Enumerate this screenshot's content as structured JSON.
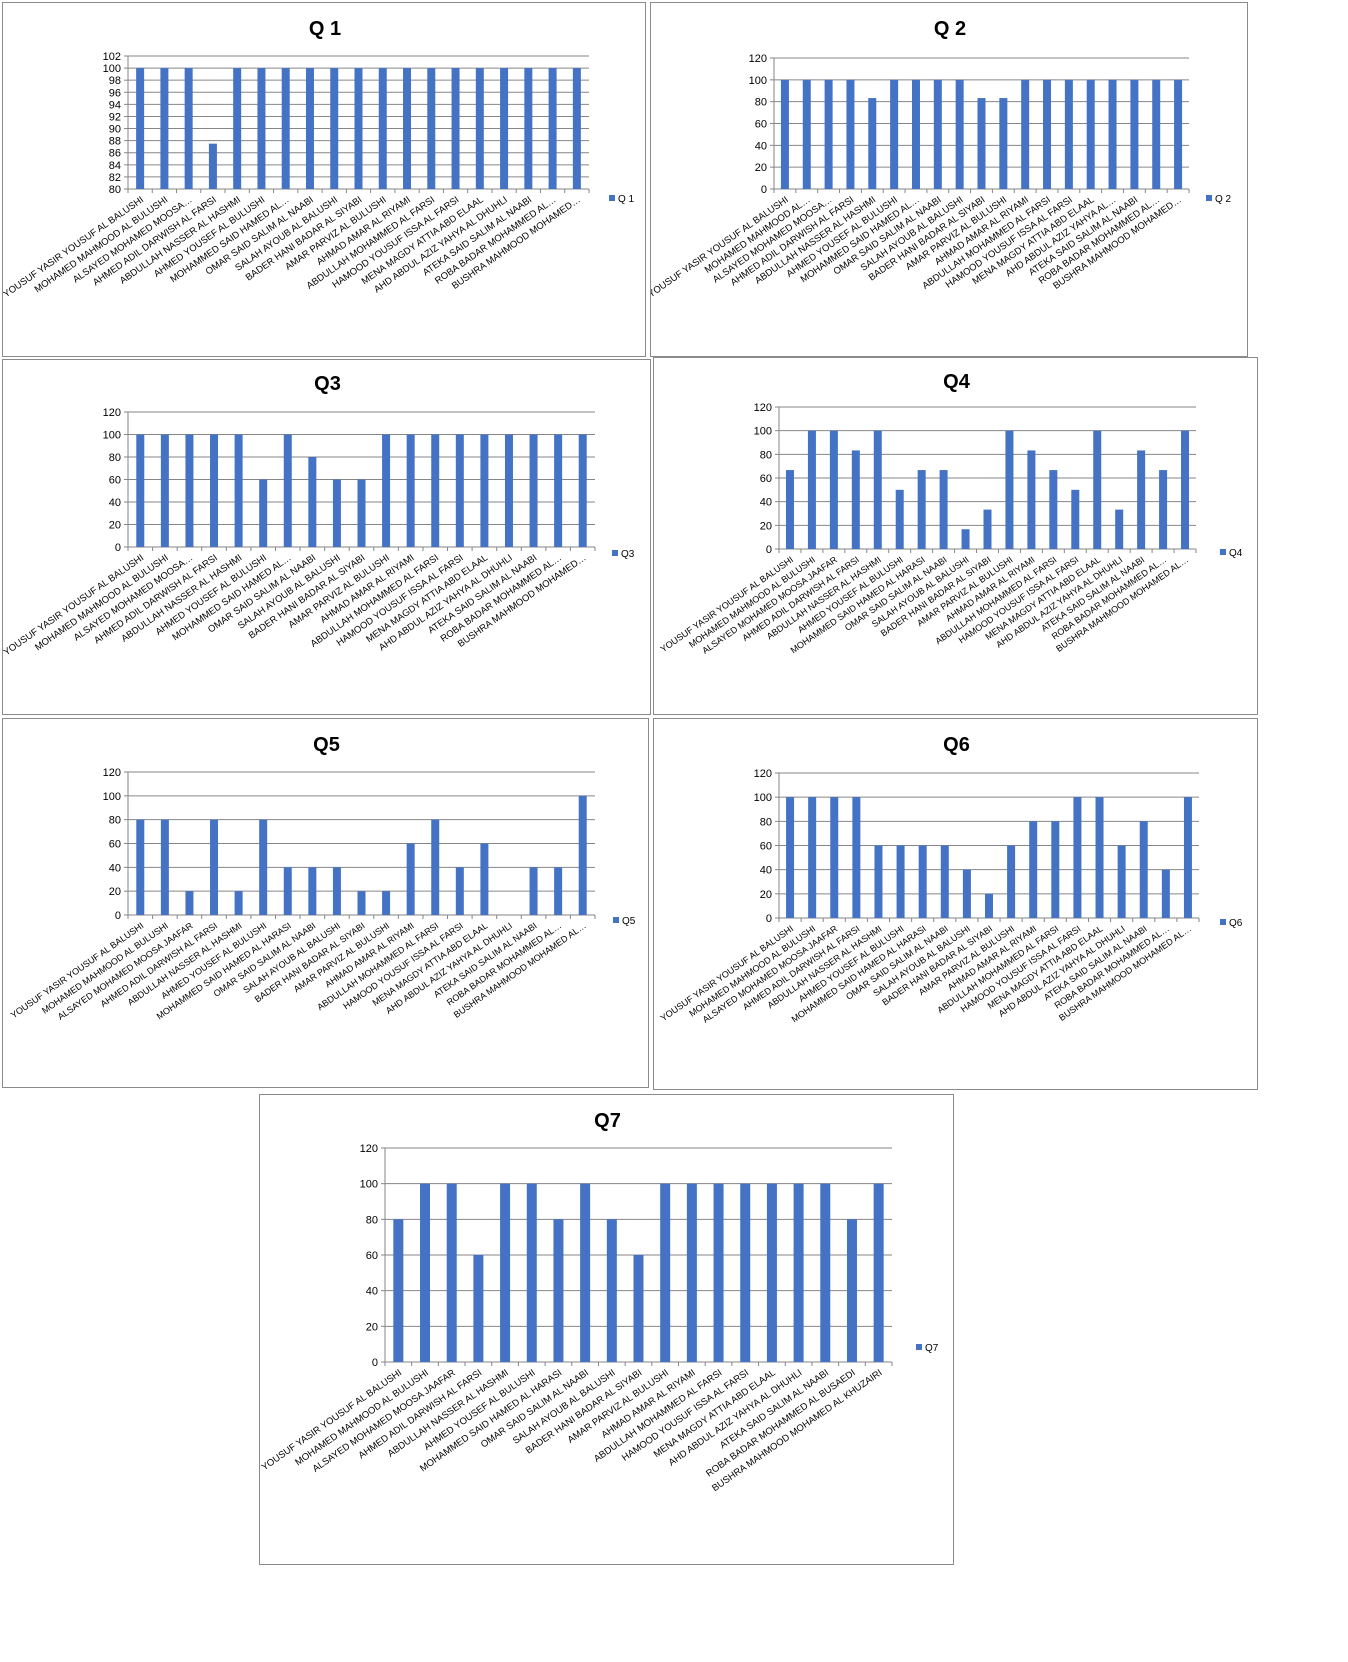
{
  "colors": {
    "bar": "#4472C4",
    "grid": "#868686",
    "axis": "#868686"
  },
  "chart_data": [
    {
      "type": "bar",
      "title": "Q 1",
      "series": [
        {
          "name": "Q 1",
          "values": [
            100,
            100,
            100,
            87.5,
            100,
            100,
            100,
            100,
            100,
            100,
            100,
            100,
            100,
            100,
            100,
            100,
            100,
            100,
            100
          ]
        }
      ],
      "categories": [
        "YOUSUF YASIR YOUSUF AL BALUSHI",
        "MOHAMED MAHMOOD AL BULUSHI",
        "ALSAYED MOHAMED  MOOSA…",
        "AHMED ADIL DARWISH  AL FARSI",
        "ABDULLAH NASSER AL HASHMI",
        "AHMED YOUSEF  AL BULUSHI",
        "MOHAMMED SAID HAMED AL…",
        "OMAR SAID SALIM AL NAABI",
        "SALAH AYOUB  AL BALUSHI",
        "BADER HANI BADAR  AL SIYABI",
        "AMAR PARVIZ  AL BULUSHI",
        "AHMAD AMAR  AL RIYAMI",
        "ABDULLAH MOHAMMED  AL FARSI",
        "HAMOOD YOUSUF ISSA AL FARSI",
        "MENA MAGDY ATTIA ABD ELAAL",
        "AHD ABDUL AZIZ YAHYA  AL DHUHLI",
        "ATEKA SAID SALIM AL NAABI",
        "ROBA BADAR MOHAMMED AL…",
        "BUSHRA MAHMOOD MOHAMED…"
      ],
      "ylim": [
        80,
        102
      ],
      "yticks": [
        80,
        82,
        84,
        86,
        88,
        90,
        92,
        94,
        96,
        98,
        100,
        102
      ],
      "grid": true,
      "legend": "right"
    },
    {
      "type": "bar",
      "title": "Q 2",
      "series": [
        {
          "name": "Q 2",
          "values": [
            100,
            100,
            100,
            100,
            83.3,
            100,
            100,
            100,
            100,
            83.3,
            83.3,
            100,
            100,
            100,
            100,
            100,
            100,
            100,
            100
          ]
        }
      ],
      "categories": [
        "YOUSUF YASIR YOUSUF AL BALUSHI",
        "MOHAMED MAHMOOD AL…",
        "ALSAYED MOHAMED  MOOSA…",
        "AHMED ADIL DARWISH  AL FARSI",
        "ABDULLAH NASSER AL HASHMI",
        "AHMED YOUSEF  AL BULUSHI",
        "MOHAMMED SAID HAMED AL…",
        "OMAR SAID SALIM AL NAABI",
        "SALAH AYOUB  AL BALUSHI",
        "BADER HANI BADAR  AL SIYABI",
        "AMAR PARVIZ  AL BULUSHI",
        "AHMAD AMAR  AL RIYAMI",
        "ABDULLAH MOHAMMED  AL FARSI",
        "HAMOOD YOUSUF ISSA AL FARSI",
        "MENA MAGDY ATTIA ABD ELAAL",
        "AHD ABDUL AZIZ YAHYA  AL…",
        "ATEKA SAID SALIM AL NAABI",
        "ROBA BADAR MOHAMMED AL…",
        "BUSHRA MAHMOOD MOHAMED…"
      ],
      "ylim": [
        0,
        120
      ],
      "yticks": [
        0,
        20,
        40,
        60,
        80,
        100,
        120
      ],
      "grid": true,
      "legend": "right"
    },
    {
      "type": "bar",
      "title": "Q3",
      "series": [
        {
          "name": "Q3",
          "values": [
            100,
            100,
            100,
            100,
            100,
            60,
            100,
            80,
            60,
            60,
            100,
            100,
            100,
            100,
            100,
            100,
            100,
            100,
            100
          ]
        }
      ],
      "categories": [
        "YOUSUF YASIR YOUSUF AL BALUSHI",
        "MOHAMED MAHMOOD AL BULUSHI",
        "ALSAYED MOHAMED  MOOSA…",
        "AHMED ADIL DARWISH  AL FARSI",
        "ABDULLAH NASSER AL HASHMI",
        "AHMED YOUSEF  AL BULUSHI",
        "MOHAMMED SAID HAMED AL…",
        "OMAR SAID SALIM AL NAABI",
        "SALAH AYOUB  AL BALUSHI",
        "BADER HANI BADAR  AL SIYABI",
        "AMAR PARVIZ  AL BULUSHI",
        "AHMAD AMAR  AL RIYAMI",
        "ABDULLAH MOHAMMED  AL FARSI",
        "HAMOOD YOUSUF ISSA AL FARSI",
        "MENA MAGDY ATTIA ABD ELAAL",
        "AHD ABDUL AZIZ YAHYA  AL DHUHLI",
        "ATEKA SAID SALIM AL NAABI",
        "ROBA BADAR MOHAMMED AL…",
        "BUSHRA MAHMOOD MOHAMED…"
      ],
      "ylim": [
        0,
        120
      ],
      "yticks": [
        0,
        20,
        40,
        60,
        80,
        100,
        120
      ],
      "grid": true,
      "legend": "right"
    },
    {
      "type": "bar",
      "title": "Q4",
      "series": [
        {
          "name": "Q4",
          "values": [
            66.7,
            100,
            100,
            83.3,
            100,
            50,
            66.7,
            66.7,
            16.7,
            33.3,
            100,
            83.3,
            66.7,
            50,
            100,
            33.3,
            83.3,
            66.7,
            100
          ]
        }
      ],
      "categories": [
        "YOUSUF YASIR YOUSUF AL BALUSHI",
        "MOHAMED MAHMOOD AL BULUSHI",
        "ALSAYED MOHAMED  MOOSA JAAFAR",
        "AHMED ADIL DARWISH  AL FARSI",
        "ABDULLAH NASSER AL HASHMI",
        "AHMED YOUSEF  AL BULUSHI",
        "MOHAMMED SAID HAMED AL HARASI",
        "OMAR SAID SALIM AL NAABI",
        "SALAH AYOUB  AL BALUSHI",
        "BADER HANI BADAR  AL SIYABI",
        "AMAR PARVIZ  AL BULUSHI",
        "AHMAD AMAR  AL RIYAMI",
        "ABDULLAH MOHAMMED  AL FARSI",
        "HAMOOD YOUSUF ISSA AL FARSI",
        "MENA MAGDY ATTIA ABD ELAAL",
        "AHD ABDUL AZIZ YAHYA  AL DHUHLI",
        "ATEKA SAID SALIM AL NAABI",
        "ROBA BADAR MOHAMMED AL…",
        "BUSHRA MAHMOOD MOHAMED AL…"
      ],
      "ylim": [
        0,
        120
      ],
      "yticks": [
        0,
        20,
        40,
        60,
        80,
        100,
        120
      ],
      "grid": true,
      "legend": "right"
    },
    {
      "type": "bar",
      "title": "Q5",
      "series": [
        {
          "name": "Q5",
          "values": [
            80,
            80,
            20,
            80,
            20,
            80,
            40,
            40,
            40,
            20,
            20,
            60,
            80,
            40,
            60,
            0,
            40,
            40,
            100
          ]
        }
      ],
      "categories": [
        "YOUSUF YASIR YOUSUF AL BALUSHI",
        "MOHAMED MAHMOOD AL BULUSHI",
        "ALSAYED MOHAMED  MOOSA JAAFAR",
        "AHMED ADIL DARWISH  AL FARSI",
        "ABDULLAH NASSER AL HASHMI",
        "AHMED YOUSEF  AL BULUSHI",
        "MOHAMMED SAID HAMED AL HARASI",
        "OMAR SAID SALIM AL NAABI",
        "SALAH AYOUB  AL BALUSHI",
        "BADER HANI BADAR  AL SIYABI",
        "AMAR PARVIZ  AL BULUSHI",
        "AHMAD AMAR  AL RIYAMI",
        "ABDULLAH MOHAMMED  AL FARSI",
        "HAMOOD YOUSUF ISSA AL FARSI",
        "MENA MAGDY ATTIA ABD ELAAL",
        "AHD ABDUL AZIZ YAHYA  AL DHUHLI",
        "ATEKA SAID SALIM AL NAABI",
        "ROBA BADAR MOHAMMED AL…",
        "BUSHRA MAHMOOD MOHAMED AL…"
      ],
      "ylim": [
        0,
        120
      ],
      "yticks": [
        0,
        20,
        40,
        60,
        80,
        100,
        120
      ],
      "grid": true,
      "legend": "right"
    },
    {
      "type": "bar",
      "title": "Q6",
      "series": [
        {
          "name": "Q6",
          "values": [
            100,
            100,
            100,
            100,
            60,
            60,
            60,
            60,
            40,
            20,
            60,
            80,
            80,
            100,
            100,
            60,
            80,
            40,
            100
          ]
        }
      ],
      "categories": [
        "YOUSUF YASIR YOUSUF AL BALUSHI",
        "MOHAMED MAHMOOD AL BULUSHI",
        "ALSAYED MOHAMED  MOOSA JAAFAR",
        "AHMED ADIL DARWISH  AL FARSI",
        "ABDULLAH NASSER AL HASHMI",
        "AHMED YOUSEF  AL BULUSHI",
        "MOHAMMED SAID HAMED AL HARASI",
        "OMAR SAID SALIM AL NAABI",
        "SALAH AYOUB  AL BALUSHI",
        "BADER HANI BADAR  AL SIYABI",
        "AMAR PARVIZ  AL BULUSHI",
        "AHMAD AMAR  AL RIYAMI",
        "ABDULLAH MOHAMMED  AL FARSI",
        "HAMOOD YOUSUF ISSA AL FARSI",
        "MENA MAGDY ATTIA ABD ELAAL",
        "AHD ABDUL AZIZ YAHYA  AL DHUHLI",
        "ATEKA SAID SALIM AL NAABI",
        "ROBA BADAR MOHAMMED AL…",
        "BUSHRA MAHMOOD MOHAMED AL…"
      ],
      "ylim": [
        0,
        120
      ],
      "yticks": [
        0,
        20,
        40,
        60,
        80,
        100,
        120
      ],
      "grid": true,
      "legend": "right"
    },
    {
      "type": "bar",
      "title": "Q7",
      "series": [
        {
          "name": "Q7",
          "values": [
            80,
            100,
            100,
            60,
            100,
            100,
            80,
            100,
            80,
            60,
            100,
            100,
            100,
            100,
            100,
            100,
            100,
            80,
            100
          ]
        }
      ],
      "categories": [
        "YOUSUF YASIR YOUSUF AL BALUSHI",
        "MOHAMED MAHMOOD AL BULUSHI",
        "ALSAYED MOHAMED  MOOSA JAAFAR",
        "AHMED ADIL DARWISH  AL FARSI",
        "ABDULLAH NASSER AL HASHMI",
        "AHMED YOUSEF  AL BULUSHI",
        "MOHAMMED SAID HAMED AL HARASI",
        "OMAR SAID SALIM AL NAABI",
        "SALAH AYOUB  AL BALUSHI",
        "BADER HANI BADAR  AL SIYABI",
        "AMAR PARVIZ  AL BULUSHI",
        "AHMAD AMAR  AL RIYAMI",
        "ABDULLAH MOHAMMED  AL FARSI",
        "HAMOOD YOUSUF ISSA AL FARSI",
        "MENA MAGDY ATTIA ABD ELAAL",
        "AHD ABDUL AZIZ YAHYA  AL DHUHLI",
        "ATEKA SAID SALIM AL NAABI",
        "ROBA BADAR MOHAMMED AL BUSAEDI",
        "BUSHRA MAHMOOD MOHAMED AL KHUZAIRI"
      ],
      "ylim": [
        0,
        120
      ],
      "yticks": [
        0,
        20,
        40,
        60,
        80,
        100,
        120
      ],
      "grid": true,
      "legend": "right"
    }
  ]
}
